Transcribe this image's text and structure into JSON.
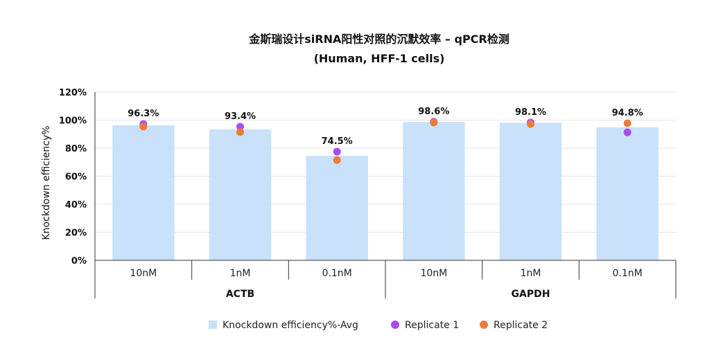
{
  "chart_data": {
    "type": "bar",
    "title": "金斯瑞设计siRNA阳性对照的沉默效率 – qPCR检测",
    "subtitle": "(Human, HFF-1 cells)",
    "ylabel": "Knockdown efficiency%",
    "xlabel": "",
    "ylim": [
      0,
      120
    ],
    "yticks": [
      "0%",
      "20%",
      "40%",
      "60%",
      "80%",
      "100%",
      "120%"
    ],
    "ytick_values": [
      0,
      20,
      40,
      60,
      80,
      100,
      120
    ],
    "grid": true,
    "legend_position": "bottom",
    "categories": [
      "10nM",
      "1nM",
      "0.1nM",
      "10nM",
      "1nM",
      "0.1nM"
    ],
    "groups": [
      {
        "label": "ACTB",
        "span": [
          0,
          2
        ]
      },
      {
        "label": "GAPDH",
        "span": [
          3,
          5
        ]
      }
    ],
    "data_labels": [
      "96.3%",
      "93.4%",
      "74.5%",
      "98.6%",
      "98.1%",
      "94.8%"
    ],
    "series": [
      {
        "name": "Knockdown efficiency%-Avg",
        "kind": "bar",
        "color": "#c9e1fa",
        "values": [
          96.3,
          93.4,
          74.5,
          98.6,
          98.1,
          94.8
        ]
      },
      {
        "name": "Replicate 1",
        "kind": "point",
        "color": "#a64df2",
        "values": [
          97.2,
          95.3,
          77.5,
          98.8,
          98.3,
          91.3
        ]
      },
      {
        "name": "Replicate 2",
        "kind": "point",
        "color": "#ec7c3a",
        "values": [
          95.4,
          91.5,
          71.5,
          98.3,
          97.2,
          97.8
        ]
      }
    ]
  }
}
